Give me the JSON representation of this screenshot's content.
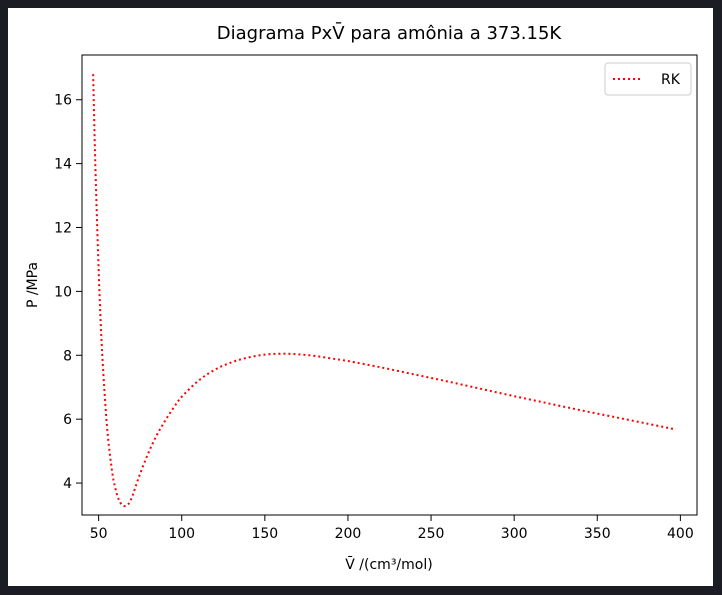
{
  "chart_data": {
    "type": "line",
    "title": "Diagrama PxV̄ para amônia a 373.15K",
    "xlabel": "V̄ /(cm³/mol)",
    "ylabel": "P /MPa",
    "xlim": [
      40,
      410
    ],
    "ylim": [
      3.0,
      17.4
    ],
    "xticks": [
      50,
      100,
      150,
      200,
      250,
      300,
      350,
      400
    ],
    "yticks": [
      4,
      6,
      8,
      10,
      12,
      14,
      16
    ],
    "grid": false,
    "legend_position": "top-right",
    "series": [
      {
        "name": "RK",
        "color": "#ff0000",
        "style": "dotted",
        "x": [
          46.7,
          48,
          50,
          52,
          55,
          58,
          60,
          62,
          64,
          66,
          68,
          70,
          72,
          75,
          80,
          85,
          90,
          95,
          100,
          110,
          120,
          130,
          140,
          150,
          160,
          170,
          180,
          190,
          200,
          220,
          240,
          260,
          280,
          300,
          320,
          340,
          360,
          380,
          397
        ],
        "y": [
          16.8,
          14.0,
          10.7,
          8.2,
          5.8,
          4.4,
          3.85,
          3.5,
          3.32,
          3.28,
          3.35,
          3.55,
          3.85,
          4.3,
          4.95,
          5.5,
          5.95,
          6.35,
          6.7,
          7.2,
          7.55,
          7.78,
          7.93,
          8.02,
          8.05,
          8.03,
          7.98,
          7.9,
          7.82,
          7.62,
          7.4,
          7.18,
          6.95,
          6.72,
          6.5,
          6.28,
          6.07,
          5.86,
          5.68
        ]
      }
    ]
  }
}
